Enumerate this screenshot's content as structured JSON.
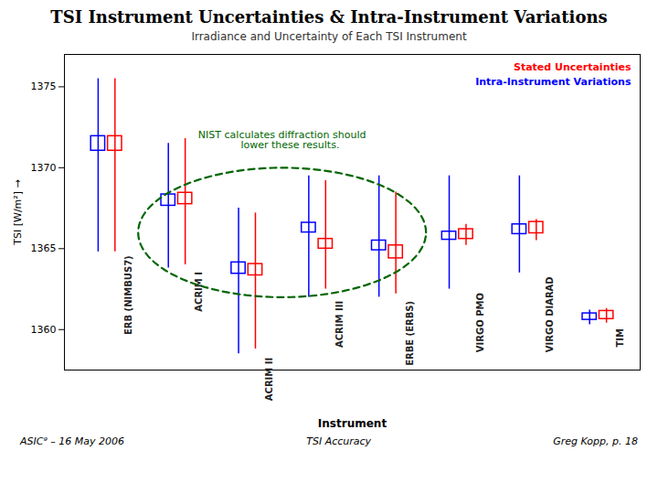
{
  "chart_data": {
    "type": "box",
    "title": "TSI Instrument Uncertainties & Intra-Instrument Variations",
    "subtitle": "Irradiance and Uncertainty of Each TSI Instrument",
    "xlabel": "Instrument",
    "ylabel": "TSI [W/m²]",
    "ylim": [
      1357.5,
      1377
    ],
    "yticks": [
      1360,
      1365,
      1370,
      1375
    ],
    "grid": false,
    "tick_labels": "y",
    "legend": "upper right",
    "categories": [
      "ERB (NIMBUS7)",
      "ACRIM I",
      "ACRIM II",
      "ACRIM III",
      "ERBE (ERBS)",
      "VIRGO PMO",
      "VIRGO DIARAD",
      "TIM"
    ],
    "series": [
      {
        "name": "Intra-Instrument Variations",
        "color": "blue",
        "values": [
          1371.5,
          1368.0,
          1363.8,
          1366.3,
          1365.2,
          1365.8,
          1366.2,
          1360.8
        ],
        "half_widths": [
          0.45,
          0.35,
          0.35,
          0.3,
          0.3,
          0.25,
          0.3,
          0.2
        ],
        "err_low": [
          1364.8,
          1363.8,
          1358.5,
          1362.0,
          1362.0,
          1362.5,
          1363.5,
          1360.3
        ],
        "err_high": [
          1375.5,
          1371.5,
          1367.5,
          1369.5,
          1369.5,
          1369.5,
          1369.5,
          1361.2
        ]
      },
      {
        "name": "Stated Uncertainties",
        "color": "red",
        "values": [
          1371.5,
          1368.1,
          1363.7,
          1365.3,
          1364.8,
          1365.9,
          1366.3,
          1360.9
        ],
        "half_widths": [
          0.45,
          0.35,
          0.35,
          0.3,
          0.4,
          0.3,
          0.35,
          0.25
        ],
        "err_low": [
          1364.8,
          1364.0,
          1358.8,
          1362.5,
          1362.2,
          1365.2,
          1365.5,
          1360.4
        ],
        "err_high": [
          1375.5,
          1371.8,
          1367.2,
          1369.2,
          1368.5,
          1366.5,
          1366.8,
          1361.3
        ]
      }
    ],
    "annotations": [
      {
        "text": "NIST calculates diffraction should\n     lower these results.",
        "y": 1371.2,
        "color": "#006600"
      }
    ],
    "ellipse": {
      "categories": [
        "ACRIM I",
        "ACRIM II",
        "ACRIM III",
        "ERBE (ERBS)"
      ],
      "center": 1366.0,
      "height": 8.0,
      "color": "#006600",
      "line_style": "dashed"
    },
    "footer": [
      "ASIC⁹ – 16 May 2006",
      "TSI Accuracy",
      "Greg Kopp, p. 18"
    ]
  }
}
